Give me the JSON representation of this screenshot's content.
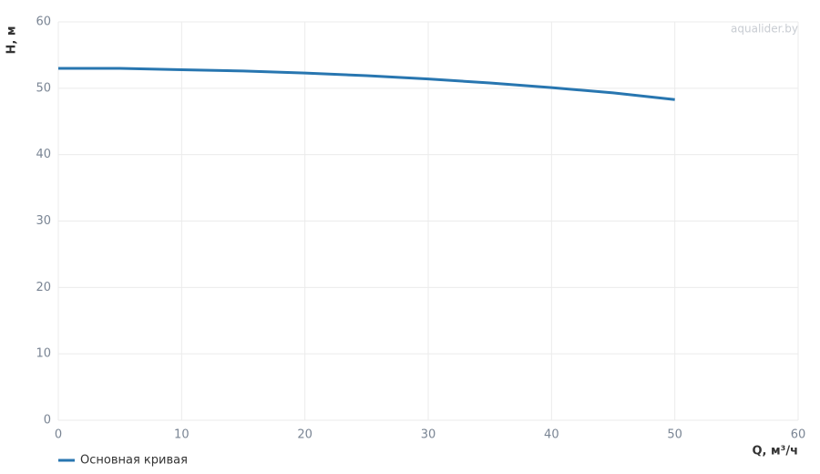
{
  "chart_data": {
    "type": "line",
    "x_label": "Q, м³/ч",
    "y_label": "H, м",
    "watermark": "aqualider.by",
    "x": [
      0,
      5,
      10,
      15,
      20,
      25,
      30,
      35,
      40,
      45,
      50
    ],
    "series": [
      {
        "name": "Основная кривая",
        "color": "#2876b0",
        "values": [
          53,
          53,
          52.8,
          52.6,
          52.3,
          51.9,
          51.4,
          50.8,
          50.1,
          49.3,
          48.3
        ]
      }
    ],
    "xlim": [
      0,
      60
    ],
    "xticks": [
      0,
      10,
      20,
      30,
      40,
      50,
      60
    ],
    "ylim": [
      0,
      60
    ],
    "yticks": [
      0,
      10,
      20,
      30,
      40,
      50,
      60
    ],
    "grid": true,
    "legend": "bottom-left"
  }
}
